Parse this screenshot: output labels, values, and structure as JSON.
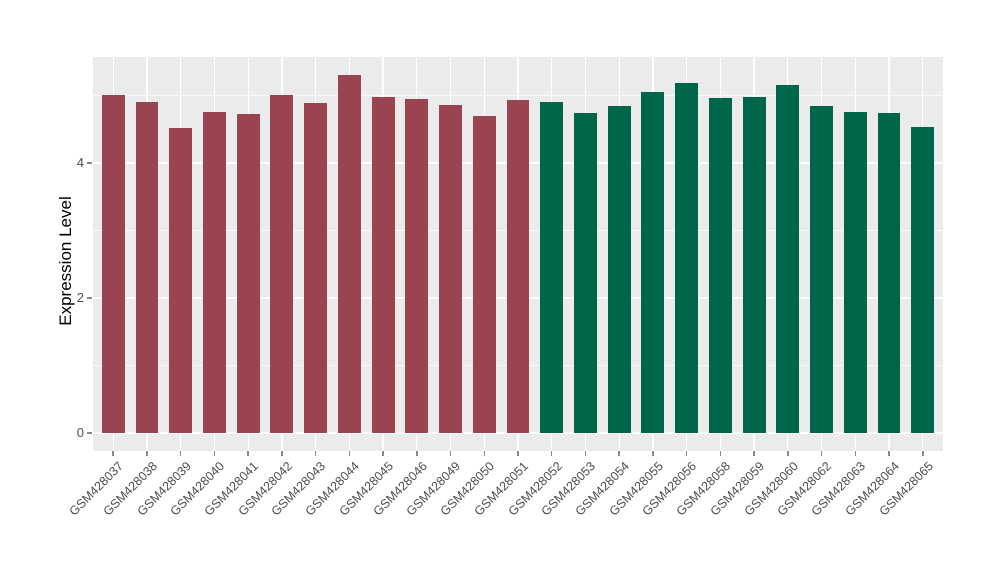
{
  "chart_data": {
    "type": "bar",
    "title": "",
    "xlabel": "",
    "ylabel": "Expression Level",
    "categories": [
      "GSM428037",
      "GSM428038",
      "GSM428039",
      "GSM428040",
      "GSM428041",
      "GSM428042",
      "GSM428043",
      "GSM428044",
      "GSM428045",
      "GSM428046",
      "GSM428049",
      "GSM428050",
      "GSM428051",
      "GSM428052",
      "GSM428053",
      "GSM428054",
      "GSM428055",
      "GSM428056",
      "GSM428058",
      "GSM428059",
      "GSM428060",
      "GSM428062",
      "GSM428063",
      "GSM428064",
      "GSM428065"
    ],
    "values": [
      5.0,
      4.9,
      4.52,
      4.76,
      4.72,
      5.0,
      4.89,
      5.31,
      4.98,
      4.95,
      4.86,
      4.7,
      4.94,
      4.9,
      4.74,
      4.84,
      5.05,
      5.19,
      4.96,
      4.98,
      5.15,
      4.85,
      4.75,
      4.74,
      4.53
    ],
    "groups": [
      "maroon",
      "maroon",
      "maroon",
      "maroon",
      "maroon",
      "maroon",
      "maroon",
      "maroon",
      "maroon",
      "maroon",
      "maroon",
      "maroon",
      "maroon",
      "green",
      "green",
      "green",
      "green",
      "green",
      "green",
      "green",
      "green",
      "green",
      "green",
      "green",
      "green"
    ],
    "group_colors": {
      "maroon": "#9A4452",
      "green": "#006649"
    },
    "yticks": [
      0,
      2,
      4
    ],
    "minor_yticks": [
      1,
      3,
      5
    ],
    "ylim": [
      -0.27,
      5.57
    ],
    "grid": true,
    "legend": "none",
    "panel_bg": "#EBEBEB",
    "grid_color": "#FFFFFF",
    "x_label_angle": 45
  }
}
